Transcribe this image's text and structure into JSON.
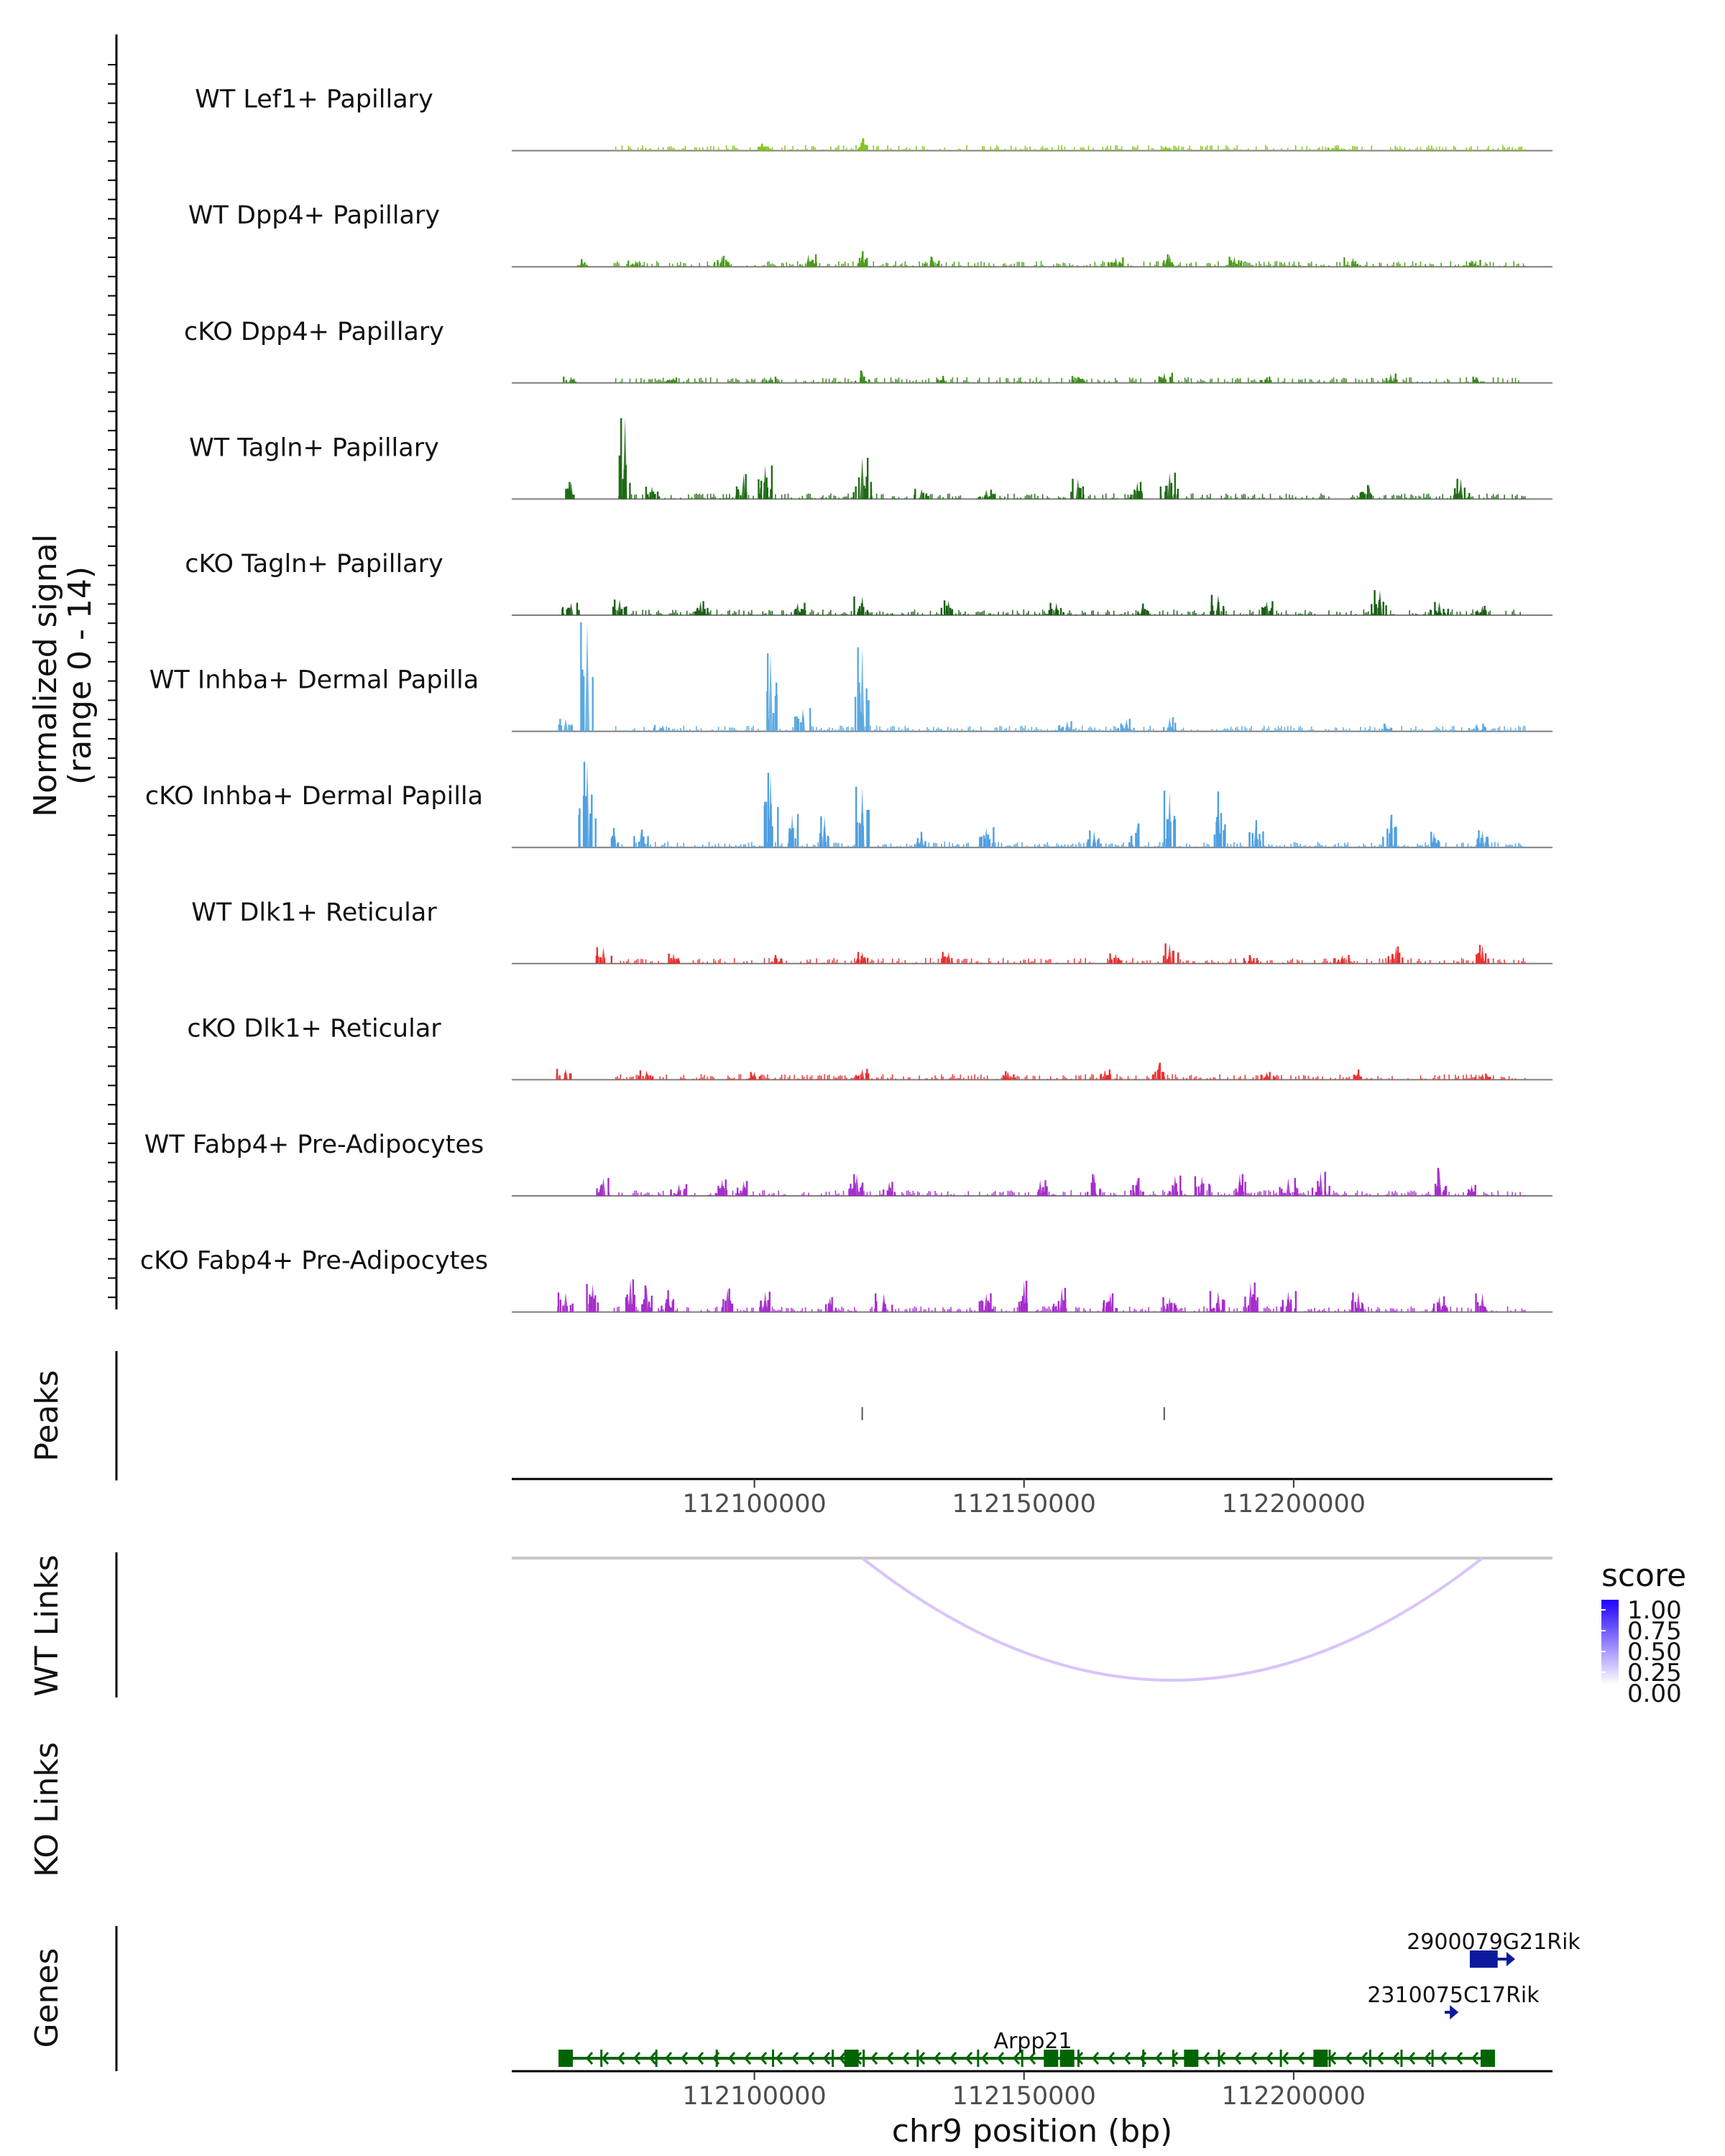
{
  "figure": {
    "coverage_axis_title": "Normalized signal",
    "coverage_axis_subtitle": "(range 0 - 14)",
    "peaks_axis_title": "Peaks",
    "wt_links_axis_title": "WT Links",
    "ko_links_axis_title": "KO Links",
    "genes_axis_title": "Genes",
    "xlabel": "chr9 position (bp)",
    "legend_title": "score"
  },
  "chart_data": {
    "type": "coverage-track",
    "region": {
      "chrom": "chr9",
      "start": 112055000,
      "end": 112248000
    },
    "xticks": [
      112100000,
      112150000,
      112200000
    ],
    "xtick_labels": [
      "112100000",
      "112150000",
      "112200000"
    ],
    "ylim": [
      0,
      14
    ],
    "tracks": [
      {
        "label": "WT Lef1+ Papillary",
        "color": "#7fc31c",
        "peaks": [
          [
            112101500,
            0.9
          ],
          [
            112120000,
            1.6
          ],
          [
            112177000,
            0.5
          ],
          [
            112208000,
            0.4
          ]
        ]
      },
      {
        "label": "WT Dpp4+ Papillary",
        "color": "#4a9a1a",
        "peaks": [
          [
            112068000,
            1.0
          ],
          [
            112078000,
            0.8
          ],
          [
            112094000,
            1.4
          ],
          [
            112110000,
            1.6
          ],
          [
            112120000,
            2.0
          ],
          [
            112133000,
            1.3
          ],
          [
            112167000,
            1.2
          ],
          [
            112177000,
            1.6
          ],
          [
            112189000,
            1.3
          ],
          [
            112211000,
            1.2
          ],
          [
            112233000,
            0.9
          ]
        ]
      },
      {
        "label": "cKO Dpp4+ Papillary",
        "color": "#3b8a1a",
        "peaks": [
          [
            112066000,
            0.8
          ],
          [
            112085000,
            0.7
          ],
          [
            112103000,
            0.8
          ],
          [
            112120000,
            1.6
          ],
          [
            112135000,
            0.9
          ],
          [
            112160000,
            0.9
          ],
          [
            112176000,
            1.3
          ],
          [
            112195000,
            0.8
          ],
          [
            112218000,
            1.2
          ],
          [
            112234000,
            0.8
          ]
        ]
      },
      {
        "label": "WT Tagln+ Papillary",
        "color": "#1e6b14",
        "peaks": [
          [
            112066000,
            2.2
          ],
          [
            112076000,
            10.4
          ],
          [
            112081000,
            1.6
          ],
          [
            112098000,
            3.2
          ],
          [
            112102000,
            4.3
          ],
          [
            112120000,
            5.3
          ],
          [
            112131000,
            1.3
          ],
          [
            112143000,
            1.2
          ],
          [
            112160000,
            2.6
          ],
          [
            112171000,
            2.2
          ],
          [
            112177000,
            3.4
          ],
          [
            112214000,
            1.8
          ],
          [
            112231000,
            2.6
          ]
        ]
      },
      {
        "label": "cKO Tagln+ Papillary",
        "color": "#1a5e14",
        "peaks": [
          [
            112066000,
            1.6
          ],
          [
            112075000,
            2.0
          ],
          [
            112090000,
            1.8
          ],
          [
            112108000,
            1.6
          ],
          [
            112120000,
            2.4
          ],
          [
            112136000,
            1.9
          ],
          [
            112156000,
            1.6
          ],
          [
            112172000,
            1.5
          ],
          [
            112186000,
            2.6
          ],
          [
            112195000,
            1.8
          ],
          [
            112216000,
            3.2
          ],
          [
            112227000,
            1.7
          ],
          [
            112235000,
            1.2
          ]
        ]
      },
      {
        "label": "WT Inhba+ Dermal Papilla",
        "color": "#5aa8e0",
        "peaks": [
          [
            112065000,
            1.6
          ],
          [
            112069000,
            14.0
          ],
          [
            112083000,
            0.8
          ],
          [
            112103000,
            10.0
          ],
          [
            112109000,
            3.0
          ],
          [
            112120000,
            10.8
          ],
          [
            112158000,
            1.3
          ],
          [
            112169000,
            1.6
          ],
          [
            112177000,
            1.8
          ],
          [
            112217000,
            1.0
          ],
          [
            112234000,
            1.0
          ]
        ]
      },
      {
        "label": "cKO Inhba+ Dermal Papilla",
        "color": "#4f9fe0",
        "peaks": [
          [
            112069000,
            11.0
          ],
          [
            112074000,
            2.5
          ],
          [
            112079000,
            2.3
          ],
          [
            112103000,
            9.6
          ],
          [
            112107000,
            4.3
          ],
          [
            112113000,
            4.0
          ],
          [
            112120000,
            7.8
          ],
          [
            112131000,
            2.0
          ],
          [
            112143000,
            2.6
          ],
          [
            112163000,
            2.2
          ],
          [
            112171000,
            3.1
          ],
          [
            112177000,
            7.3
          ],
          [
            112186000,
            7.2
          ],
          [
            112193000,
            3.5
          ],
          [
            112218000,
            4.2
          ],
          [
            112226000,
            2.0
          ],
          [
            112235000,
            2.2
          ]
        ]
      },
      {
        "label": "WT Dlk1+ Reticular",
        "color": "#e83030",
        "peaks": [
          [
            112072000,
            2.1
          ],
          [
            112085000,
            1.3
          ],
          [
            112104000,
            1.1
          ],
          [
            112120000,
            1.5
          ],
          [
            112136000,
            1.5
          ],
          [
            112167000,
            1.3
          ],
          [
            112177000,
            2.6
          ],
          [
            112192000,
            1.1
          ],
          [
            112209000,
            1.1
          ],
          [
            112219000,
            2.2
          ],
          [
            112235000,
            2.4
          ]
        ]
      },
      {
        "label": "cKO Dlk1+ Reticular",
        "color": "#e83030",
        "peaks": [
          [
            112065000,
            1.4
          ],
          [
            112080000,
            1.2
          ],
          [
            112100000,
            1.0
          ],
          [
            112120000,
            1.4
          ],
          [
            112147000,
            1.1
          ],
          [
            112165000,
            1.3
          ],
          [
            112175000,
            2.2
          ],
          [
            112195000,
            1.0
          ],
          [
            112212000,
            1.3
          ],
          [
            112235000,
            0.8
          ]
        ]
      },
      {
        "label": "WT Fabp4+ Pre-Adipocytes",
        "color": "#a62ccc",
        "peaks": [
          [
            112072000,
            2.3
          ],
          [
            112086000,
            1.5
          ],
          [
            112094000,
            2.1
          ],
          [
            112098000,
            1.9
          ],
          [
            112119000,
            2.8
          ],
          [
            112125000,
            1.8
          ],
          [
            112153000,
            2.0
          ],
          [
            112163000,
            2.8
          ],
          [
            112171000,
            2.3
          ],
          [
            112178000,
            2.6
          ],
          [
            112183000,
            2.5
          ],
          [
            112190000,
            2.8
          ],
          [
            112199000,
            2.3
          ],
          [
            112205000,
            3.1
          ],
          [
            112227000,
            3.6
          ],
          [
            112233000,
            1.4
          ]
        ]
      },
      {
        "label": "cKO Fabp4+ Pre-Adipocytes",
        "color": "#a62ccc",
        "peaks": [
          [
            112065000,
            2.5
          ],
          [
            112070000,
            3.6
          ],
          [
            112077000,
            4.2
          ],
          [
            112080000,
            3.4
          ],
          [
            112084000,
            2.8
          ],
          [
            112095000,
            3.0
          ],
          [
            112102000,
            2.6
          ],
          [
            112114000,
            1.9
          ],
          [
            112124000,
            2.4
          ],
          [
            112143000,
            2.4
          ],
          [
            112150000,
            4.0
          ],
          [
            112157000,
            3.1
          ],
          [
            112166000,
            2.4
          ],
          [
            112177000,
            1.9
          ],
          [
            112186000,
            2.7
          ],
          [
            112192000,
            3.8
          ],
          [
            112199000,
            2.7
          ],
          [
            112212000,
            2.5
          ],
          [
            112227000,
            2.0
          ],
          [
            112235000,
            2.4
          ]
        ]
      }
    ],
    "peaks": [
      112120000,
      112176000
    ],
    "wt_links": [
      {
        "start": 112120000,
        "end": 112235000,
        "score": 0.25
      }
    ],
    "ko_links": [],
    "score_legend": {
      "title": "score",
      "breaks": [
        "1.00",
        "0.75",
        "0.50",
        "0.25",
        "0.00"
      ],
      "low_color": "#ffffff",
      "high_color": "#1f00ff"
    },
    "genes": [
      {
        "name": "Arpp21",
        "start": 112065000,
        "end": 112237000,
        "strand": "-",
        "color": "#006400",
        "exons": [
          112065000,
          112118000,
          112155000,
          112158000,
          112181000,
          112205000,
          112236000
        ]
      },
      {
        "name": "2310075C17Rik",
        "start": 112228000,
        "end": 112229500,
        "strand": "+",
        "color": "#0b1a9c",
        "exons": []
      },
      {
        "name": "2900079G21Rik",
        "start": 112233000,
        "end": 112240000,
        "strand": "+",
        "color": "#0b1a9c",
        "exons": [
          112234000,
          112236500
        ]
      }
    ]
  }
}
